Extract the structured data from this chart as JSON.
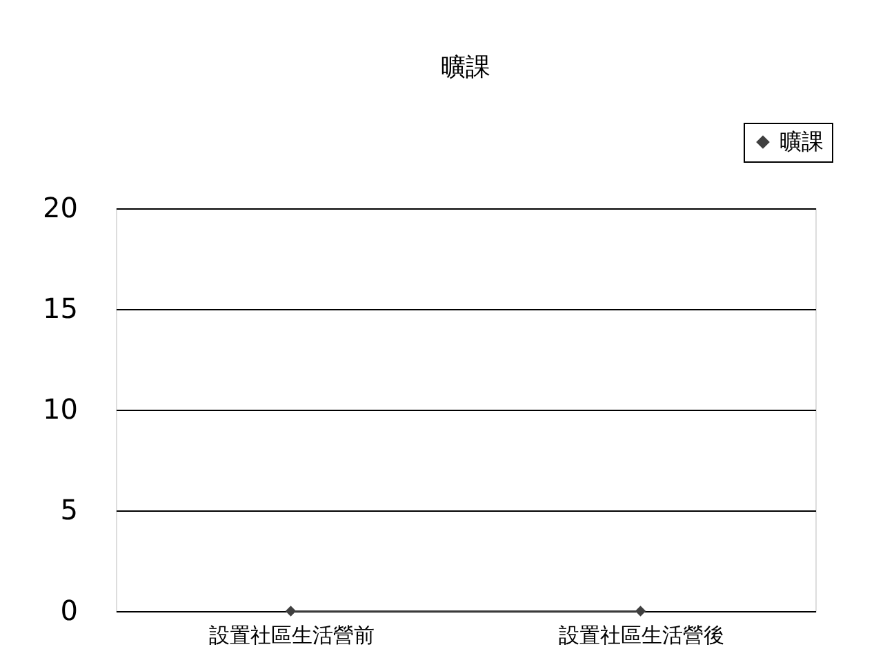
{
  "chart_data": {
    "type": "line",
    "title": "曠課",
    "categories": [
      "設置社區生活營前",
      "設置社區生活營後"
    ],
    "series": [
      {
        "name": "曠課",
        "color": "#404040",
        "values": [
          0,
          0
        ]
      }
    ],
    "ylim": [
      0,
      20
    ],
    "yticks": [
      0,
      5,
      10,
      15,
      20
    ],
    "grid": "y",
    "legend": "top right",
    "marker": "diamond",
    "line_style": "solid"
  }
}
